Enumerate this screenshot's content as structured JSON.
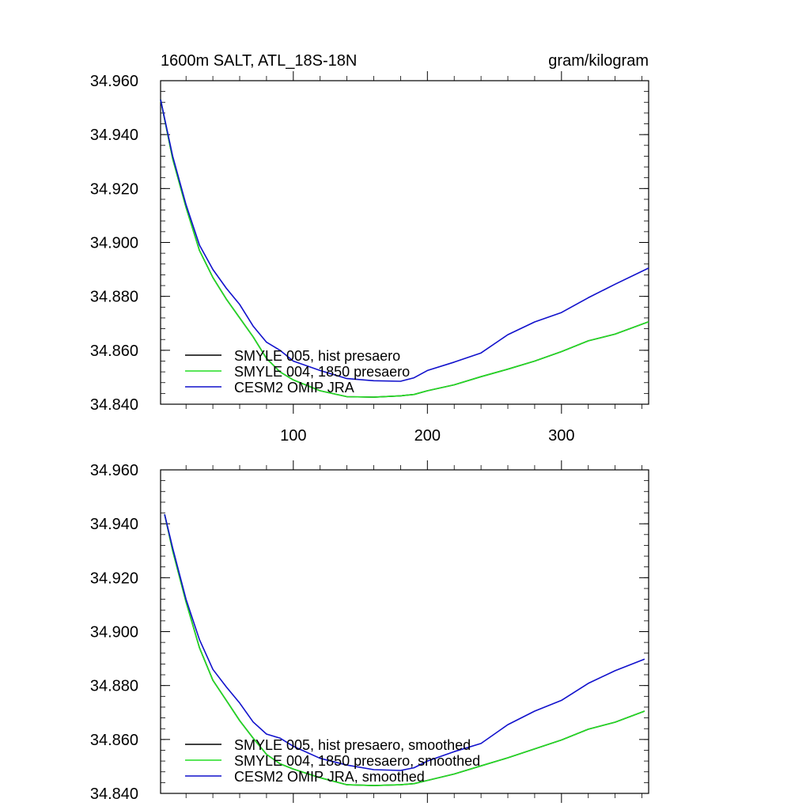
{
  "figure": {
    "title_left": "1600m SALT, ATL_18S-18N",
    "title_right": "gram/kilogram"
  },
  "chart_data": [
    {
      "type": "line",
      "title": "1600m SALT, ATL_18S-18N",
      "units": "gram/kilogram",
      "xlabel": "",
      "ylabel": "",
      "xlim": [
        1,
        365
      ],
      "ylim": [
        34.84,
        34.96
      ],
      "xticks": [
        100,
        200,
        300
      ],
      "yticks": [
        34.96,
        34.94,
        34.92,
        34.9,
        34.88,
        34.86,
        34.84
      ],
      "ytick_labels": [
        "34.960",
        "34.940",
        "34.920",
        "34.900",
        "34.880",
        "34.860",
        "34.840"
      ],
      "legend_position": "bottom-left",
      "series": [
        {
          "name": "SMYLE 005, hist presaero",
          "color": "#000000",
          "x": [
            1,
            10,
            20,
            30,
            40,
            50,
            60,
            70,
            80,
            90,
            100,
            120,
            140,
            160,
            180,
            190,
            200,
            220,
            240,
            260,
            280,
            300,
            320,
            340,
            365
          ],
          "y": [
            34.953,
            34.931,
            34.913,
            34.897,
            34.887,
            34.879,
            34.872,
            34.865,
            34.857,
            34.852,
            34.849,
            34.845,
            34.8428,
            34.8426,
            34.8431,
            34.8436,
            34.845,
            34.8472,
            34.8502,
            34.853,
            34.856,
            34.8595,
            34.8635,
            34.866,
            34.8706
          ]
        },
        {
          "name": "SMYLE 004, 1850 presaero",
          "color": "#22dd22",
          "x": [
            1,
            10,
            20,
            30,
            40,
            50,
            60,
            70,
            80,
            90,
            100,
            120,
            140,
            160,
            180,
            190,
            200,
            220,
            240,
            260,
            280,
            300,
            320,
            340,
            365
          ],
          "y": [
            34.953,
            34.931,
            34.913,
            34.897,
            34.887,
            34.879,
            34.872,
            34.865,
            34.857,
            34.852,
            34.849,
            34.845,
            34.8428,
            34.8426,
            34.8431,
            34.8436,
            34.845,
            34.8472,
            34.8502,
            34.853,
            34.856,
            34.8595,
            34.8635,
            34.866,
            34.8706
          ]
        },
        {
          "name": "CESM2 OMIP JRA",
          "color": "#1111cc",
          "x": [
            1,
            10,
            20,
            30,
            40,
            50,
            60,
            70,
            80,
            90,
            100,
            120,
            140,
            160,
            180,
            190,
            200,
            220,
            240,
            260,
            280,
            300,
            320,
            340,
            365
          ],
          "y": [
            34.953,
            34.932,
            34.914,
            34.899,
            34.89,
            34.883,
            34.877,
            34.869,
            34.863,
            34.86,
            34.856,
            34.8525,
            34.8495,
            34.8487,
            34.8485,
            34.8498,
            34.8525,
            34.8556,
            34.859,
            34.8658,
            34.8705,
            34.874,
            34.8795,
            34.8845,
            34.8905
          ]
        }
      ]
    },
    {
      "type": "line",
      "title": "",
      "units": "",
      "xlabel": "",
      "ylabel": "",
      "xlim": [
        1,
        365
      ],
      "ylim": [
        34.84,
        34.96
      ],
      "xticks": [
        100,
        200,
        300
      ],
      "yticks": [
        34.96,
        34.94,
        34.92,
        34.9,
        34.88,
        34.86,
        34.84
      ],
      "ytick_labels": [
        "34.960",
        "34.940",
        "34.920",
        "34.900",
        "34.880",
        "34.860",
        "34.840"
      ],
      "legend_position": "bottom-left",
      "series": [
        {
          "name": "SMYLE 005, hist presaero, smoothed",
          "color": "#000000",
          "x": [
            4,
            10,
            20,
            30,
            40,
            50,
            60,
            70,
            80,
            90,
            100,
            120,
            140,
            160,
            180,
            190,
            200,
            220,
            240,
            260,
            280,
            300,
            320,
            340,
            362
          ],
          "y": [
            34.9435,
            34.93,
            34.911,
            34.894,
            34.882,
            34.8745,
            34.867,
            34.8605,
            34.8545,
            34.851,
            34.849,
            34.8458,
            34.8432,
            34.8429,
            34.8432,
            34.8436,
            34.8448,
            34.8472,
            34.8502,
            34.8532,
            34.8565,
            34.8598,
            34.8638,
            34.8664,
            34.8705
          ]
        },
        {
          "name": "SMYLE 004, 1850 presaero, smoothed",
          "color": "#22dd22",
          "x": [
            4,
            10,
            20,
            30,
            40,
            50,
            60,
            70,
            80,
            90,
            100,
            120,
            140,
            160,
            180,
            190,
            200,
            220,
            240,
            260,
            280,
            300,
            320,
            340,
            362
          ],
          "y": [
            34.9435,
            34.93,
            34.911,
            34.894,
            34.882,
            34.8745,
            34.867,
            34.8605,
            34.8545,
            34.851,
            34.849,
            34.8458,
            34.8432,
            34.8429,
            34.8432,
            34.8436,
            34.8448,
            34.8472,
            34.8502,
            34.8532,
            34.8565,
            34.8598,
            34.8638,
            34.8664,
            34.8705
          ]
        },
        {
          "name": "CESM2 OMIP JRA, smoothed",
          "color": "#1111cc",
          "x": [
            4,
            10,
            20,
            30,
            40,
            50,
            60,
            70,
            80,
            90,
            100,
            120,
            140,
            160,
            180,
            190,
            200,
            220,
            240,
            260,
            280,
            300,
            320,
            340,
            362
          ],
          "y": [
            34.9435,
            34.931,
            34.912,
            34.897,
            34.886,
            34.8795,
            34.8735,
            34.8665,
            34.862,
            34.8605,
            34.8575,
            34.853,
            34.8505,
            34.8488,
            34.8485,
            34.8495,
            34.852,
            34.8555,
            34.8585,
            34.8655,
            34.8705,
            34.8745,
            34.8808,
            34.8855,
            34.8898
          ]
        }
      ]
    }
  ]
}
